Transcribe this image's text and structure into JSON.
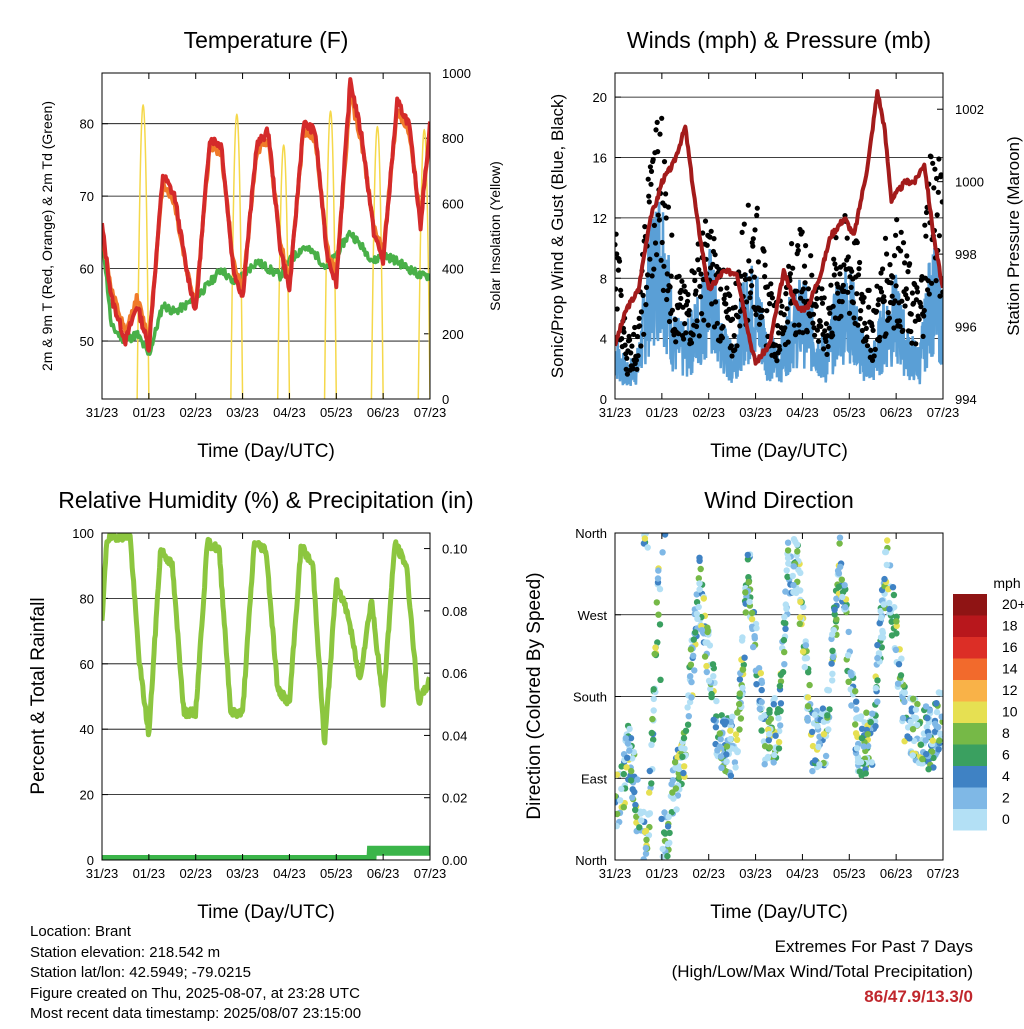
{
  "x_ticks": [
    "31/23",
    "01/23",
    "02/23",
    "03/23",
    "04/23",
    "05/23",
    "06/23",
    "07/23"
  ],
  "x_axis_label": "Time (Day/UTC)",
  "panels": {
    "temperature": {
      "title": "Temperature (F)",
      "ylabel_left": "2m & 9m T (Red, Orange) & 2m Td (Green)",
      "ylabel_right": "Solar Insolation (Yellow)",
      "yticks_left": [
        "50",
        "60",
        "70",
        "80"
      ],
      "yticks_right": [
        "0",
        "200",
        "400",
        "600",
        "800",
        "1000"
      ]
    },
    "winds": {
      "title": "Winds (mph) & Pressure (mb)",
      "ylabel_left": "Sonic/Prop Wind & Gust (Blue, Black)",
      "ylabel_right": "Station Pressure (Maroon)",
      "yticks_left": [
        "0",
        "4",
        "8",
        "12",
        "16",
        "20"
      ],
      "yticks_right": [
        "994",
        "996",
        "998",
        "1000",
        "1002"
      ]
    },
    "humidity": {
      "title": "Relative Humidity (%) & Precipitation (in)",
      "ylabel_left": "Percent & Total Rainfall",
      "yticks_left": [
        "0",
        "20",
        "40",
        "60",
        "80",
        "100"
      ],
      "yticks_right": [
        "0.00",
        "0.02",
        "0.04",
        "0.06",
        "0.08",
        "0.10"
      ]
    },
    "direction": {
      "title": "Wind Direction",
      "ylabel_left": "Direction (Colored By Speed)",
      "yticks_left": [
        "North",
        "East",
        "South",
        "West",
        "North"
      ],
      "legend_title": "mph",
      "legend_labels": [
        "20+",
        "18",
        "16",
        "14",
        "12",
        "10",
        "8",
        "6",
        "4",
        "2",
        "0"
      ]
    }
  },
  "info": {
    "location": "Location: Brant",
    "elevation": "Station elevation: 218.542 m",
    "latlon": "Station lat/lon: 42.5949; -79.0215",
    "created": "Figure created on Thu, 2025-08-07, at 23:28 UTC",
    "recent": "Most recent data timestamp: 2025/08/07 23:15:00"
  },
  "extremes": {
    "line1": "Extremes For Past 7 Days",
    "line2": "(High/Low/Max Wind/Total Precipitation)",
    "values": "86/47.9/13.3/0"
  },
  "colors": {
    "temp2m": "#d42a2a",
    "temp9m": "#f07a2a",
    "dewpoint": "#49b048",
    "solar": "#f5d84a",
    "wind": "#5a9fd6",
    "gust": "#000000",
    "pressure": "#a31b1b",
    "rh": "#8cc63f",
    "precip": "#3bb54a",
    "speed_scale": [
      "#b3e0f5",
      "#7fb8e6",
      "#3f82c4",
      "#3aa060",
      "#76b947",
      "#e6e052",
      "#f9b248",
      "#f26a2c",
      "#dc2e26",
      "#b8171c",
      "#8f1414"
    ]
  },
  "chart_data": [
    {
      "type": "line",
      "title": "Temperature (F)",
      "xlabel": "Time (Day/UTC)",
      "ylabel": "2m & 9m T (Red, Orange) & 2m Td (Green)",
      "y2label": "Solar Insolation (Yellow)",
      "x": [
        "31/23",
        "01/23",
        "02/23",
        "03/23",
        "04/23",
        "05/23",
        "06/23",
        "07/23"
      ],
      "ylim": [
        42,
        87
      ],
      "y2lim": [
        0,
        1000
      ],
      "series": [
        {
          "name": "2m T",
          "x": [
            0,
            0.2,
            0.5,
            0.75,
            1,
            1.3,
            1.55,
            1.8,
            2,
            2.3,
            2.55,
            2.8,
            3,
            3.3,
            3.55,
            3.8,
            4,
            4.3,
            4.55,
            4.8,
            5,
            5.3,
            5.55,
            5.8,
            6,
            6.3,
            6.55,
            6.8,
            7
          ],
          "values": [
            66,
            56,
            50,
            55,
            49,
            73,
            70,
            60,
            54,
            78,
            77,
            60,
            56,
            77,
            79,
            63,
            57,
            80,
            79,
            62,
            58,
            86,
            78,
            65,
            61,
            83,
            80,
            66,
            80
          ]
        },
        {
          "name": "9m T",
          "x": [
            0,
            0.2,
            0.5,
            0.75,
            1,
            1.3,
            1.55,
            1.8,
            2,
            2.3,
            2.55,
            2.8,
            3,
            3.3,
            3.55,
            3.8,
            4,
            4.3,
            4.55,
            4.8,
            5,
            5.3,
            5.55,
            5.8,
            6,
            6.3,
            6.55,
            6.8,
            7
          ],
          "values": [
            65,
            57,
            51,
            56,
            50,
            72,
            69,
            60,
            55,
            77,
            76,
            61,
            57,
            76,
            78,
            64,
            58,
            79,
            78,
            63,
            59,
            84,
            77,
            66,
            62,
            82,
            79,
            67,
            79
          ]
        },
        {
          "name": "2m Td",
          "x": [
            0,
            0.2,
            0.5,
            0.75,
            1,
            1.3,
            1.55,
            1.8,
            2,
            2.3,
            2.55,
            2.8,
            3,
            3.3,
            3.55,
            3.8,
            4,
            4.3,
            4.55,
            4.8,
            5,
            5.3,
            5.55,
            5.8,
            6,
            6.3,
            6.55,
            6.8,
            7
          ],
          "values": [
            65,
            52,
            50,
            51,
            48,
            55,
            54,
            55,
            56,
            58,
            60,
            58,
            59,
            61,
            60,
            59,
            61,
            63,
            62,
            60,
            62,
            65,
            63,
            61,
            62,
            61,
            60,
            59,
            59
          ]
        },
        {
          "name": "Solar",
          "axis": "y2",
          "x": [
            0.75,
            0.88,
            1,
            2.75,
            2.88,
            3,
            3.75,
            3.88,
            4,
            4.75,
            4.88,
            5,
            5.75,
            5.88,
            6,
            6.75,
            6.88,
            7
          ],
          "values": [
            0,
            950,
            0,
            0,
            920,
            0,
            0,
            820,
            0,
            0,
            930,
            0,
            0,
            880,
            0,
            0,
            870,
            0
          ]
        }
      ]
    },
    {
      "type": "line",
      "title": "Winds (mph) & Pressure (mb)",
      "xlabel": "Time (Day/UTC)",
      "ylabel": "Sonic/Prop Wind & Gust (Blue, Black)",
      "y2label": "Station Pressure (Maroon)",
      "x": [
        "31/23",
        "01/23",
        "02/23",
        "03/23",
        "04/23",
        "05/23",
        "06/23",
        "07/23"
      ],
      "ylim": [
        0,
        21.6
      ],
      "y2lim": [
        994,
        1003
      ],
      "series": [
        {
          "name": "Wind",
          "x": [
            0,
            0.25,
            0.5,
            0.75,
            1,
            1.25,
            1.5,
            1.75,
            2,
            2.25,
            2.5,
            2.75,
            3,
            3.25,
            3.5,
            3.75,
            4,
            4.25,
            4.5,
            4.75,
            5,
            5.25,
            5.5,
            5.75,
            6,
            6.25,
            6.5,
            6.75,
            7
          ],
          "values": [
            4,
            2,
            3,
            10,
            13,
            5,
            4,
            6,
            9,
            5,
            3,
            7,
            8,
            4,
            3,
            6,
            7,
            5,
            3,
            7,
            8,
            4,
            3,
            6,
            7,
            4,
            3,
            9,
            7
          ]
        },
        {
          "name": "Gust",
          "x": [
            0,
            0.25,
            0.5,
            0.75,
            1,
            1.25,
            1.5,
            1.75,
            2,
            2.25,
            2.5,
            2.75,
            3,
            3.25,
            3.5,
            3.75,
            4,
            4.25,
            4.5,
            4.75,
            5,
            5.25,
            5.5,
            5.75,
            6,
            6.25,
            6.5,
            6.75,
            7
          ],
          "values": [
            12,
            4,
            5,
            17,
            19,
            9,
            7,
            10,
            12,
            9,
            6,
            12,
            13,
            8,
            6,
            10,
            11,
            9,
            6,
            11,
            12,
            9,
            6,
            10,
            12,
            9,
            7,
            18,
            14
          ]
        },
        {
          "name": "Pressure",
          "axis": "y2",
          "x": [
            0,
            0.25,
            0.5,
            0.75,
            0.9,
            1,
            1.25,
            1.5,
            1.75,
            2,
            2.3,
            2.6,
            2.9,
            3,
            3.3,
            3.6,
            3.9,
            4.1,
            4.4,
            4.6,
            4.9,
            5.1,
            5.4,
            5.6,
            5.75,
            5.9,
            6.2,
            6.4,
            6.6,
            6.8,
            7
          ],
          "values": [
            995.5,
            996.5,
            997,
            999,
            999.5,
            1000,
            1000.5,
            1001.5,
            999,
            997,
            997.5,
            997.5,
            995.5,
            995,
            995.5,
            997.5,
            996.5,
            996.5,
            997.5,
            998.5,
            999,
            998.5,
            1000.5,
            1002.5,
            1001.5,
            999.5,
            1000,
            1000,
            1000.5,
            998.5,
            997
          ]
        }
      ]
    },
    {
      "type": "line",
      "title": "Relative Humidity (%) & Precipitation (in)",
      "xlabel": "Time (Day/UTC)",
      "ylabel": "Percent & Total Rainfall",
      "x": [
        "31/23",
        "01/23",
        "02/23",
        "03/23",
        "04/23",
        "05/23",
        "06/23",
        "07/23"
      ],
      "ylim": [
        0,
        100
      ],
      "y2lim": [
        0,
        0.105
      ],
      "series": [
        {
          "name": "RH",
          "x": [
            0,
            0.1,
            0.3,
            0.6,
            0.8,
            1,
            1.25,
            1.5,
            1.75,
            2,
            2.25,
            2.5,
            2.75,
            3,
            3.25,
            3.5,
            3.75,
            4,
            4.25,
            4.5,
            4.75,
            5,
            5.25,
            5.5,
            5.75,
            6,
            6.25,
            6.5,
            6.75,
            7
          ],
          "values": [
            72,
            98,
            99,
            99,
            60,
            38,
            95,
            90,
            45,
            45,
            97,
            95,
            45,
            45,
            97,
            95,
            52,
            48,
            96,
            90,
            35,
            85,
            75,
            55,
            80,
            48,
            97,
            90,
            48,
            55
          ]
        },
        {
          "name": "Precip",
          "axis": "y2",
          "x": [
            0,
            5.75,
            5.76,
            7
          ],
          "values": [
            0,
            0,
            0.003,
            0.003
          ]
        }
      ]
    },
    {
      "type": "scatter",
      "title": "Wind Direction",
      "xlabel": "Time (Day/UTC)",
      "ylabel": "Direction (Colored By Speed)",
      "x": [
        "31/23",
        "01/23",
        "02/23",
        "03/23",
        "04/23",
        "05/23",
        "06/23",
        "07/23"
      ],
      "ylim": [
        0,
        360
      ],
      "yticks": [
        "North",
        "East",
        "South",
        "West",
        "North"
      ],
      "legend": {
        "title": "mph",
        "placement": "right",
        "labels": [
          "20+",
          "18",
          "16",
          "14",
          "12",
          "10",
          "8",
          "6",
          "4",
          "2",
          "0"
        ]
      },
      "series": [
        {
          "name": "Direction",
          "x": [
            0.05,
            0.3,
            0.6,
            0.7,
            0.95,
            1.0,
            1.5,
            1.8,
            2.2,
            2.6,
            2.85,
            3.2,
            3.5,
            3.7,
            3.9,
            4.2,
            4.5,
            4.8,
            5.2,
            5.5,
            5.8,
            6.2,
            6.5,
            6.8,
            6.9
          ],
          "values": [
            60,
            120,
            20,
            10,
            330,
            5,
            130,
            300,
            140,
            120,
            320,
            130,
            150,
            320,
            320,
            130,
            140,
            325,
            120,
            140,
            330,
            150,
            140,
            130,
            150
          ]
        }
      ]
    }
  ]
}
